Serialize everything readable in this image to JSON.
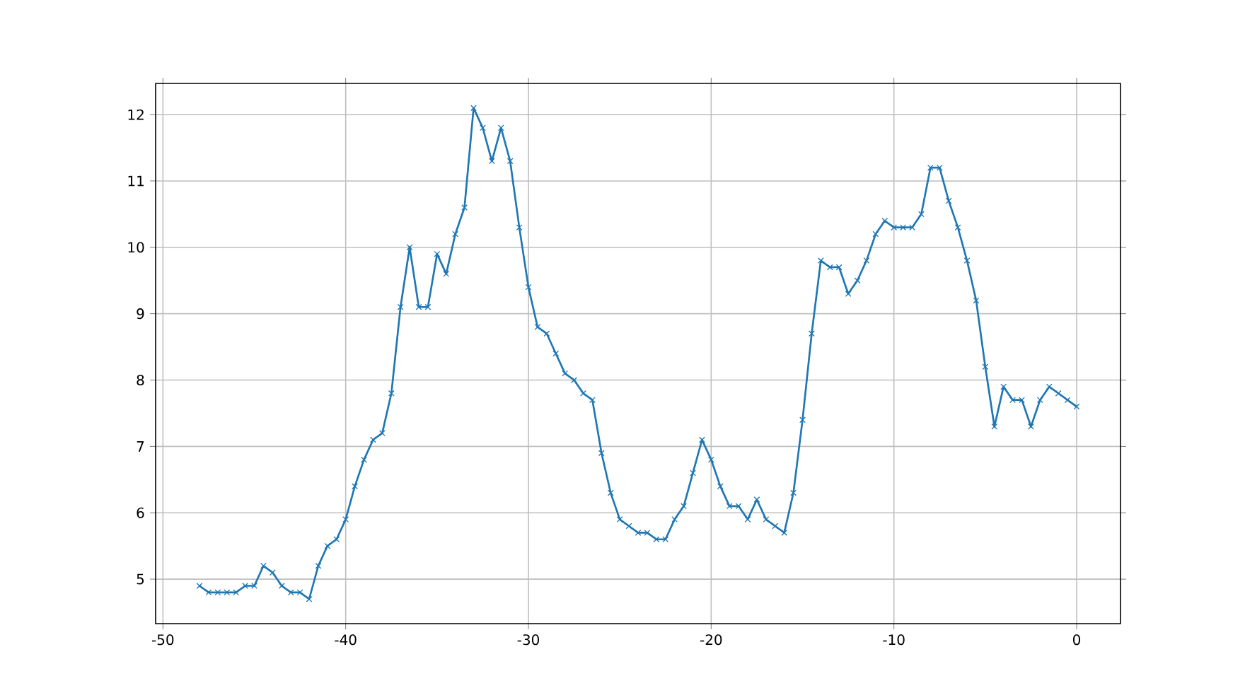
{
  "chart_data": {
    "type": "line",
    "x": [
      -48,
      -47.5,
      -47,
      -46.5,
      -46,
      -45.5,
      -45,
      -44.5,
      -44,
      -43.5,
      -43,
      -42.5,
      -42,
      -41.5,
      -41,
      -40.5,
      -40,
      -39.5,
      -39,
      -38.5,
      -38,
      -37.5,
      -37,
      -36.5,
      -36,
      -35.5,
      -35,
      -34.5,
      -34,
      -33.5,
      -33,
      -32.5,
      -32,
      -31.5,
      -31,
      -30.5,
      -30,
      -29.5,
      -29,
      -28.5,
      -28,
      -27.5,
      -27,
      -26.5,
      -26,
      -25.5,
      -25,
      -24.5,
      -24,
      -23.5,
      -23,
      -22.5,
      -22,
      -21.5,
      -21,
      -20.5,
      -20,
      -19.5,
      -19,
      -18.5,
      -18,
      -17.5,
      -17,
      -16.5,
      -16,
      -15.5,
      -15,
      -14.5,
      -14,
      -13.5,
      -13,
      -12.5,
      -12,
      -11.5,
      -11,
      -10.5,
      -10,
      -9.5,
      -9,
      -8.5,
      -8,
      -7.5,
      -7,
      -6.5,
      -6,
      -5.5,
      -5,
      -4.5,
      -4,
      -3.5,
      -3,
      -2.5,
      -2,
      -1.5,
      -1,
      -0.5,
      0
    ],
    "series": [
      {
        "color": "#1f77b4",
        "values": [
          4.9,
          4.8,
          4.8,
          4.8,
          4.8,
          4.9,
          4.9,
          5.2,
          5.1,
          4.9,
          4.8,
          4.8,
          4.7,
          5.2,
          5.5,
          5.6,
          5.9,
          6.4,
          6.8,
          7.1,
          7.2,
          7.8,
          9.1,
          10.0,
          9.1,
          9.1,
          9.9,
          9.6,
          10.2,
          10.6,
          12.1,
          11.8,
          11.3,
          11.8,
          11.3,
          10.3,
          9.4,
          8.8,
          8.7,
          8.4,
          8.1,
          8.0,
          7.8,
          7.7,
          6.9,
          6.3,
          5.9,
          5.8,
          5.7,
          5.7,
          5.6,
          5.6,
          5.9,
          6.1,
          6.6,
          7.1,
          6.8,
          6.4,
          6.1,
          6.1,
          5.9,
          6.2,
          5.9,
          5.8,
          5.7,
          6.3,
          7.4,
          8.7,
          9.8,
          9.7,
          9.7,
          9.3,
          9.5,
          9.8,
          10.2,
          10.4,
          10.3,
          10.3,
          10.3,
          10.5,
          11.2,
          11.2,
          10.7,
          10.3,
          9.8,
          9.2,
          8.2,
          7.3,
          7.9,
          7.7,
          7.7,
          7.3,
          7.7,
          7.9,
          7.8,
          7.7,
          7.6
        ]
      }
    ],
    "xlim": [
      -50.4,
      2.4
    ],
    "ylim": [
      4.33,
      12.47
    ],
    "xticks": [
      -50,
      -40,
      -30,
      -20,
      -10,
      0
    ],
    "yticks": [
      5,
      6,
      7,
      8,
      9,
      10,
      11,
      12
    ],
    "grid": true,
    "marker": "cross",
    "line_style": "solid"
  }
}
